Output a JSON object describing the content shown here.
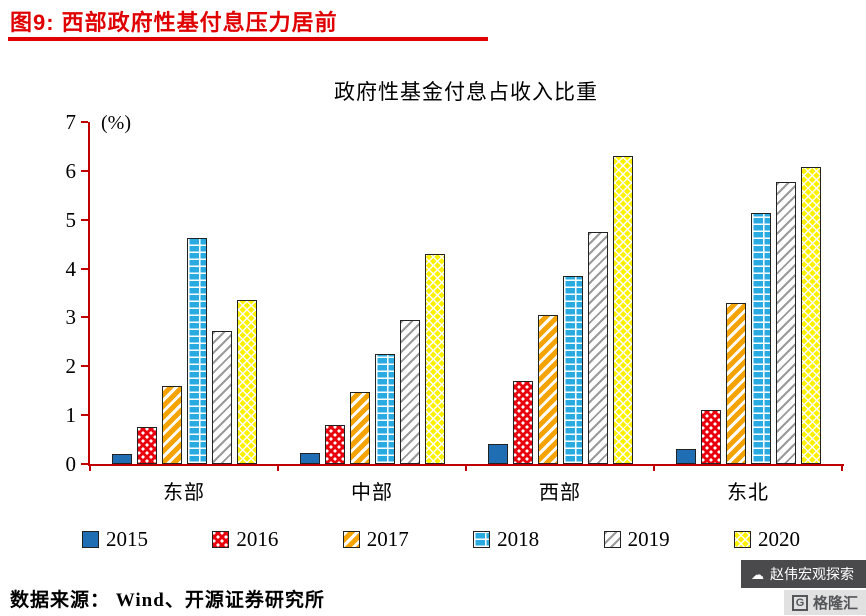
{
  "header": {
    "title": "图9:  西部政府性基付息压力居前"
  },
  "colors": {
    "accent_red": "#E00000",
    "axis_red": "#C00000",
    "text": "#000000"
  },
  "chart_data": {
    "type": "bar",
    "title": "政府性基金付息占收入比重",
    "y_unit_label": "(%)",
    "ylim": [
      0,
      7
    ],
    "yticks": [
      0,
      1,
      2,
      3,
      4,
      5,
      6,
      7
    ],
    "grid": false,
    "legend_position": "bottom",
    "categories": [
      "东部",
      "中部",
      "西部",
      "东北"
    ],
    "series": [
      {
        "name": "2015",
        "values": [
          0.2,
          0.22,
          0.4,
          0.3
        ],
        "color": "#1F6EB4",
        "pattern": "solid"
      },
      {
        "name": "2016",
        "values": [
          0.76,
          0.8,
          1.7,
          1.1
        ],
        "color": "#E8000D",
        "pattern": "dots"
      },
      {
        "name": "2017",
        "values": [
          1.6,
          1.47,
          3.05,
          3.3
        ],
        "color": "#F5A300",
        "pattern": "diag"
      },
      {
        "name": "2018",
        "values": [
          4.63,
          2.25,
          3.85,
          5.14
        ],
        "color": "#29ABE2",
        "pattern": "brick"
      },
      {
        "name": "2019",
        "values": [
          2.72,
          2.95,
          4.75,
          5.77
        ],
        "color": "#9A9A9A",
        "pattern": "diag-gray"
      },
      {
        "name": "2020",
        "values": [
          3.36,
          4.3,
          6.3,
          6.08
        ],
        "color": "#FFF200",
        "pattern": "cross"
      }
    ]
  },
  "footer": {
    "source": "数据来源：  Wind、开源证券研究所"
  },
  "watermark": {
    "icon": "cloud-icon",
    "text": "赵伟宏观探索",
    "logo_letter": "G",
    "logo_text": "格隆汇"
  }
}
